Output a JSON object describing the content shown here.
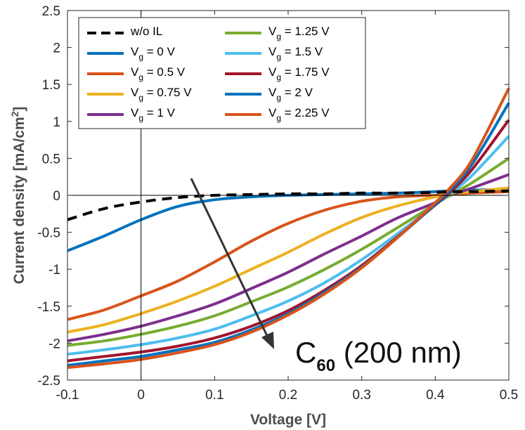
{
  "chart_data": {
    "type": "line",
    "xlabel": "Voltage [V]",
    "ylabel": "Current density [mA/cm",
    "ylabel_sup": "2",
    "ylabel_end": "]",
    "xlim": [
      -0.1,
      0.5
    ],
    "ylim": [
      -2.5,
      2.5
    ],
    "xticks": [
      "-0.1",
      "0",
      "0.1",
      "0.2",
      "0.3",
      "0.4",
      "0.5"
    ],
    "yticks": [
      "2.5",
      "2",
      "1.5",
      "1",
      "0.5",
      "0",
      "-0.5",
      "-1",
      "-1.5",
      "-2",
      "-2.5"
    ],
    "x": [
      -0.1,
      -0.05,
      0,
      0.05,
      0.1,
      0.15,
      0.2,
      0.25,
      0.3,
      0.35,
      0.4,
      0.42,
      0.45,
      0.5
    ],
    "annotation": {
      "main": "C",
      "sub": "60",
      "rest": " (200 nm)"
    },
    "series": [
      {
        "name": "w/o IL",
        "legend_text": "w/o IL",
        "color": "#000000",
        "dashed": true,
        "values": [
          -0.33,
          -0.18,
          -0.09,
          -0.03,
          0.0,
          0.01,
          0.02,
          0.02,
          0.03,
          0.03,
          0.04,
          0.05,
          0.05,
          0.06
        ]
      },
      {
        "name": "V_g = 0 V",
        "legend_sub": "g",
        "legend_rest": " = 0 V",
        "color": "#0072BD",
        "values": [
          -0.75,
          -0.55,
          -0.33,
          -0.15,
          -0.06,
          -0.02,
          0.0,
          0.01,
          0.02,
          0.03,
          0.05,
          0.06,
          0.07,
          0.08
        ]
      },
      {
        "name": "V_g = 0.5 V",
        "legend_sub": "g",
        "legend_rest": " = 0.5 V",
        "color": "#D95319",
        "values": [
          -1.68,
          -1.55,
          -1.36,
          -1.16,
          -0.9,
          -0.62,
          -0.38,
          -0.2,
          -0.08,
          -0.02,
          0.0,
          0.01,
          0.03,
          0.05
        ]
      },
      {
        "name": "V_g = 0.75 V",
        "legend_sub": "g",
        "legend_rest": " = 0.75 V",
        "color": "#EDB120",
        "values": [
          -1.85,
          -1.75,
          -1.6,
          -1.43,
          -1.23,
          -1.0,
          -0.77,
          -0.52,
          -0.3,
          -0.14,
          -0.02,
          0.02,
          0.05,
          0.1
        ]
      },
      {
        "name": "V_g = 1 V",
        "legend_sub": "g",
        "legend_rest": " = 1 V",
        "color": "#7E2F8E",
        "values": [
          -1.97,
          -1.88,
          -1.77,
          -1.63,
          -1.47,
          -1.26,
          -1.04,
          -0.79,
          -0.55,
          -0.3,
          -0.1,
          0.0,
          0.1,
          0.28
        ]
      },
      {
        "name": "V_g = 1.25 V",
        "legend_sub": "g",
        "legend_rest": " = 1.25 V",
        "color": "#77AC30",
        "values": [
          -2.03,
          -1.97,
          -1.88,
          -1.77,
          -1.63,
          -1.44,
          -1.24,
          -1.0,
          -0.73,
          -0.43,
          -0.12,
          0.0,
          0.17,
          0.5
        ]
      },
      {
        "name": "V_g = 1.5 V",
        "legend_sub": "g",
        "legend_rest": " = 1.5 V",
        "color": "#4DBEEE",
        "values": [
          -2.15,
          -2.09,
          -2.02,
          -1.93,
          -1.81,
          -1.63,
          -1.43,
          -1.18,
          -0.87,
          -0.51,
          -0.13,
          0.02,
          0.27,
          0.8
        ]
      },
      {
        "name": "V_g = 1.75 V",
        "legend_sub": "g",
        "legend_rest": " = 1.75 V",
        "color": "#A2142F",
        "values": [
          -2.24,
          -2.18,
          -2.12,
          -2.04,
          -1.93,
          -1.77,
          -1.56,
          -1.28,
          -0.95,
          -0.55,
          -0.13,
          0.04,
          0.35,
          1.02
        ]
      },
      {
        "name": "V_g = 2 V",
        "legend_sub": "g",
        "legend_rest": " = 2 V",
        "color": "#0072BD",
        "values": [
          -2.3,
          -2.24,
          -2.18,
          -2.09,
          -1.99,
          -1.82,
          -1.6,
          -1.31,
          -0.97,
          -0.56,
          -0.12,
          0.07,
          0.42,
          1.25
        ]
      },
      {
        "name": "V_g = 2.25 V",
        "legend_sub": "g",
        "legend_rest": " = 2.25 V",
        "color": "#D95319",
        "values": [
          -2.33,
          -2.28,
          -2.22,
          -2.13,
          -2.02,
          -1.85,
          -1.62,
          -1.33,
          -0.98,
          -0.56,
          -0.1,
          0.1,
          0.48,
          1.45
        ]
      }
    ],
    "legend_placement": "top-left",
    "grid": false
  }
}
